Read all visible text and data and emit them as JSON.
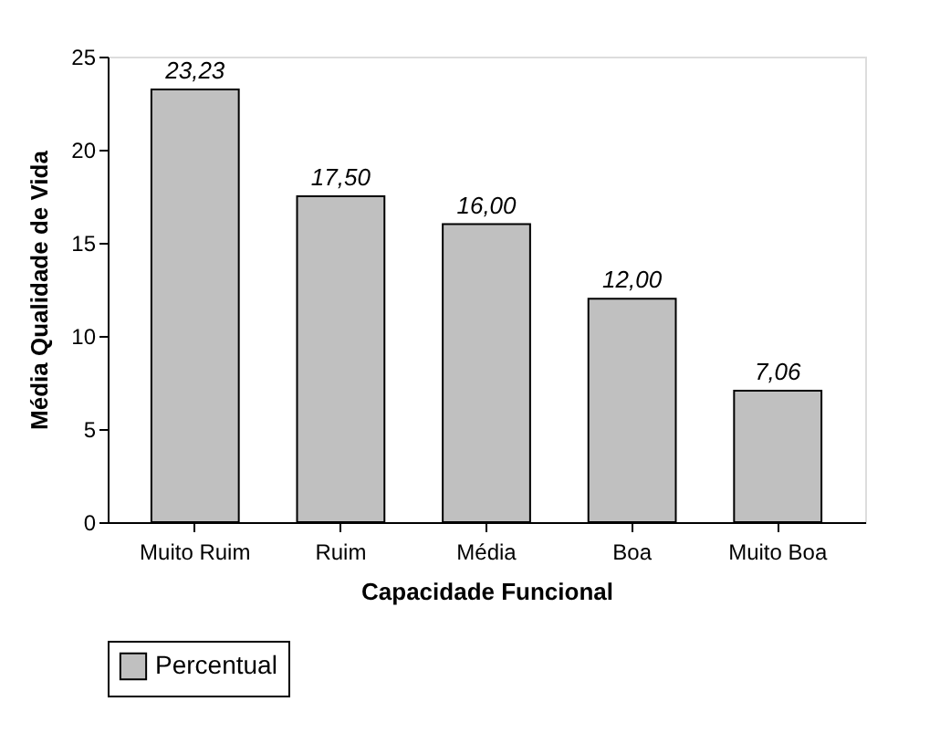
{
  "chart_data": {
    "type": "bar",
    "xlabel": "Capacidade Funcional",
    "ylabel": "Média Qualidade de Vida",
    "categories": [
      "Muito Ruim",
      "Ruim",
      "Média",
      "Boa",
      "Muito Boa"
    ],
    "series": [
      {
        "name": "Percentual",
        "color": "#c0c0c0",
        "values": [
          23.23,
          17.5,
          16.0,
          12.0,
          7.06
        ],
        "value_labels": [
          "23,23",
          "17,50",
          "16,00",
          "12,00",
          "7,06"
        ]
      }
    ],
    "ylim": [
      0,
      25
    ],
    "yticks": [
      0,
      5,
      10,
      15,
      20,
      25
    ],
    "grid": false,
    "legend": "bottom"
  }
}
